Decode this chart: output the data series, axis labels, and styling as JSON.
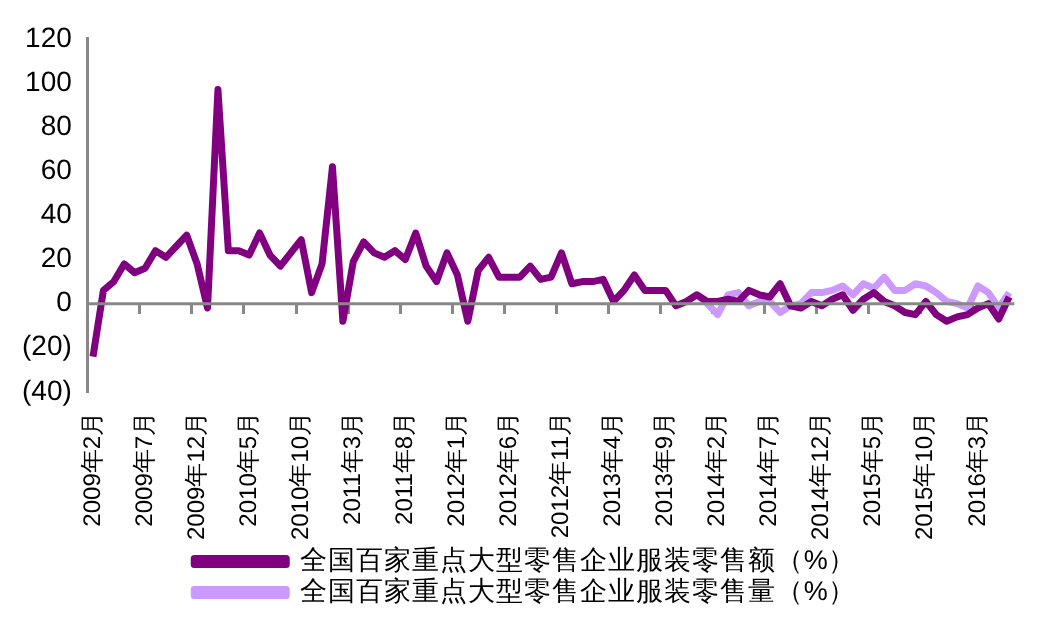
{
  "chart_data": {
    "type": "line",
    "categories": [
      "2009年2月",
      null,
      null,
      null,
      null,
      "2009年7月",
      null,
      null,
      null,
      null,
      "2009年12月",
      null,
      null,
      null,
      null,
      "2010年5月",
      null,
      null,
      null,
      null,
      "2010年10月",
      null,
      null,
      null,
      null,
      "2011年3月",
      null,
      null,
      null,
      null,
      "2011年8月",
      null,
      null,
      null,
      null,
      "2012年1月",
      null,
      null,
      null,
      null,
      "2012年6月",
      null,
      null,
      null,
      null,
      "2012年11月",
      null,
      null,
      null,
      null,
      "2013年4月",
      null,
      null,
      null,
      null,
      "2013年9月",
      null,
      null,
      null,
      null,
      "2014年2月",
      null,
      null,
      null,
      null,
      "2014年7月",
      null,
      null,
      null,
      null,
      "2014年12月",
      null,
      null,
      null,
      null,
      "2015年5月",
      null,
      null,
      null,
      null,
      "2015年10月",
      null,
      null,
      null,
      null,
      "2016年3月",
      null,
      null,
      null
    ],
    "series": [
      {
        "name": "全国百家重点大型零售企业服装零售额（%）",
        "color": "#800080",
        "values": [
          -24,
          6,
          10,
          18,
          14,
          16,
          24,
          21,
          26,
          31,
          18,
          -2,
          97,
          24,
          24,
          22,
          32,
          22,
          17,
          23,
          29,
          5,
          18,
          62,
          -8,
          19,
          28,
          23,
          21,
          24,
          20,
          32,
          17,
          10,
          23,
          13,
          -8,
          15,
          21,
          12,
          12,
          12,
          17,
          11,
          12,
          23,
          9,
          10,
          10,
          11,
          1,
          6,
          13,
          6,
          6,
          6,
          -1,
          1,
          4,
          1,
          1,
          2,
          1,
          6,
          4,
          3,
          9,
          -1,
          -2,
          1,
          -1,
          2,
          4,
          -3,
          2,
          5,
          1,
          -1,
          -4,
          -5,
          1,
          -5,
          -8,
          -6,
          -5,
          -2,
          0,
          -7,
          3
        ]
      },
      {
        "name": "全国百家重点大型零售企业服装零售量（%）",
        "color": "#cc99ff",
        "values": [
          null,
          null,
          null,
          null,
          null,
          null,
          null,
          null,
          null,
          null,
          null,
          null,
          null,
          null,
          null,
          null,
          null,
          null,
          null,
          null,
          null,
          null,
          null,
          null,
          null,
          null,
          null,
          null,
          null,
          null,
          null,
          null,
          null,
          null,
          null,
          null,
          null,
          null,
          null,
          null,
          null,
          null,
          null,
          null,
          null,
          null,
          null,
          null,
          null,
          null,
          null,
          null,
          null,
          null,
          null,
          null,
          null,
          null,
          4,
          0,
          -5,
          4,
          5,
          -1,
          1,
          1,
          -4,
          -1,
          0,
          5,
          5,
          6,
          8,
          4,
          9,
          7,
          12,
          6,
          6,
          9,
          8,
          5,
          1,
          0,
          -2,
          8,
          5,
          -2,
          5
        ]
      }
    ],
    "ylim": [
      -40,
      120
    ],
    "yticks": [
      {
        "value": -40,
        "label": "(40)"
      },
      {
        "value": -20,
        "label": "(20)"
      },
      0,
      20,
      40,
      60,
      80,
      100,
      120
    ],
    "ref_lines": [
      {
        "axis": "y",
        "value": 0,
        "color": "#888888"
      }
    ],
    "legend": "bottom",
    "grid": false
  }
}
